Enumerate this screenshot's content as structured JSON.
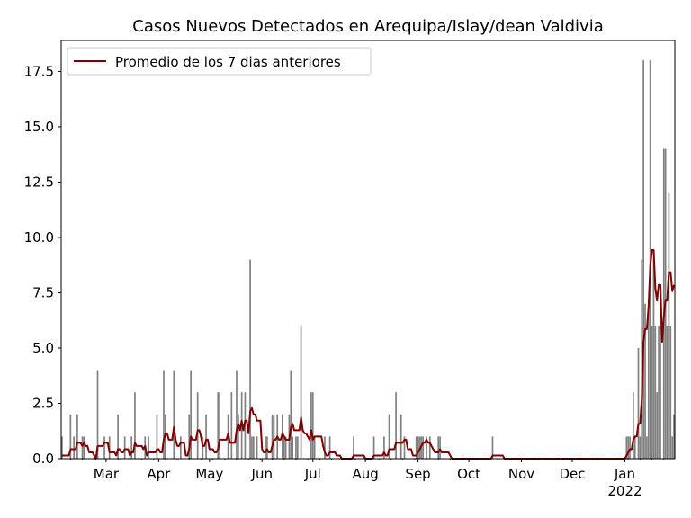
{
  "chart_data": {
    "type": "bar",
    "title": "Casos Nuevos Detectados en Arequipa/Islay/dean Valdivia",
    "xlabel": "",
    "ylabel": "",
    "x_unit": "day index (daily bars)",
    "xlim": [
      -0.5,
      361.5
    ],
    "ylim": [
      0,
      18.9
    ],
    "yticks": [
      0,
      2.5,
      5,
      7.5,
      10,
      12.5,
      15,
      17.5
    ],
    "ytick_labels": [
      "0.0",
      "2.5",
      "5.0",
      "7.5",
      "10.0",
      "12.5",
      "15.0",
      "17.5"
    ],
    "xticks": [
      {
        "label": "Mar",
        "day": 26
      },
      {
        "label": "Apr",
        "day": 57
      },
      {
        "label": "May",
        "day": 87
      },
      {
        "label": "Jun",
        "day": 118
      },
      {
        "label": "Jul",
        "day": 148
      },
      {
        "label": "Aug",
        "day": 179
      },
      {
        "label": "Sep",
        "day": 210
      },
      {
        "label": "Oct",
        "day": 240
      },
      {
        "label": "Nov",
        "day": 271
      },
      {
        "label": "Dec",
        "day": 301
      },
      {
        "label": "Jan",
        "day": 332,
        "sublabel": "2022"
      }
    ],
    "num_days": 362,
    "bars_nonzero": [
      [
        0,
        1
      ],
      [
        5,
        2
      ],
      [
        7,
        1
      ],
      [
        9,
        2
      ],
      [
        12,
        1
      ],
      [
        13,
        1
      ],
      [
        21,
        4
      ],
      [
        25,
        1
      ],
      [
        28,
        1
      ],
      [
        33,
        2
      ],
      [
        37,
        1
      ],
      [
        41,
        1
      ],
      [
        43,
        3
      ],
      [
        49,
        1
      ],
      [
        51,
        1
      ],
      [
        56,
        2
      ],
      [
        60,
        4
      ],
      [
        61,
        2
      ],
      [
        66,
        4
      ],
      [
        70,
        1
      ],
      [
        75,
        2
      ],
      [
        76,
        4
      ],
      [
        80,
        3
      ],
      [
        83,
        1
      ],
      [
        85,
        2
      ],
      [
        92,
        3
      ],
      [
        93,
        3
      ],
      [
        98,
        2
      ],
      [
        100,
        3
      ],
      [
        103,
        4
      ],
      [
        104,
        2
      ],
      [
        106,
        3
      ],
      [
        108,
        3
      ],
      [
        111,
        9
      ],
      [
        112,
        1
      ],
      [
        113,
        1
      ],
      [
        115,
        1
      ],
      [
        120,
        1
      ],
      [
        121,
        1
      ],
      [
        124,
        2
      ],
      [
        125,
        2
      ],
      [
        127,
        2
      ],
      [
        130,
        2
      ],
      [
        131,
        1
      ],
      [
        132,
        1
      ],
      [
        134,
        2
      ],
      [
        135,
        4
      ],
      [
        136,
        1
      ],
      [
        138,
        1
      ],
      [
        139,
        1
      ],
      [
        141,
        6
      ],
      [
        147,
        3
      ],
      [
        148,
        3
      ],
      [
        149,
        1
      ],
      [
        155,
        1
      ],
      [
        158,
        1
      ],
      [
        172,
        1
      ],
      [
        184,
        1
      ],
      [
        190,
        1
      ],
      [
        193,
        2
      ],
      [
        197,
        3
      ],
      [
        200,
        2
      ],
      [
        202,
        1
      ],
      [
        209,
        1
      ],
      [
        210,
        1
      ],
      [
        211,
        1
      ],
      [
        212,
        1
      ],
      [
        213,
        1
      ],
      [
        215,
        1
      ],
      [
        217,
        1
      ],
      [
        222,
        1
      ],
      [
        223,
        1
      ],
      [
        254,
        1
      ],
      [
        333,
        1
      ],
      [
        334,
        1
      ],
      [
        335,
        1
      ],
      [
        337,
        3
      ],
      [
        338,
        1
      ],
      [
        340,
        5
      ],
      [
        341,
        1
      ],
      [
        342,
        9
      ],
      [
        343,
        18
      ],
      [
        344,
        7
      ],
      [
        345,
        1
      ],
      [
        346,
        7
      ],
      [
        347,
        18
      ],
      [
        348,
        6
      ],
      [
        349,
        9
      ],
      [
        350,
        6
      ],
      [
        351,
        3
      ],
      [
        352,
        6
      ],
      [
        353,
        7
      ],
      [
        355,
        14
      ],
      [
        356,
        14
      ],
      [
        357,
        6
      ],
      [
        358,
        12
      ],
      [
        359,
        6
      ],
      [
        360,
        1
      ],
      [
        361,
        2
      ]
    ],
    "bar_color": "#808080",
    "series": [
      {
        "name": "Promedio de los 7 dias anteriores",
        "type": "line",
        "rolling_window": 7,
        "color": "#800000"
      }
    ],
    "legend": {
      "placement": "upper-left",
      "label": "Promedio de los 7 dias anteriores"
    },
    "grid": false
  }
}
